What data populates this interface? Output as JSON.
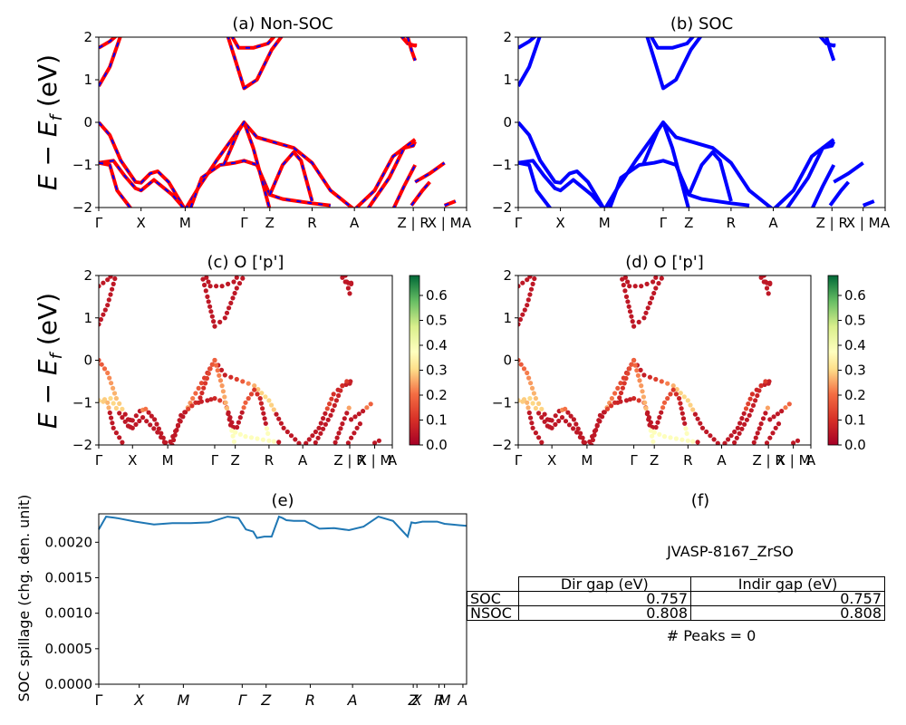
{
  "figure": {
    "ylabel_energy": "E − E_f (eV)",
    "ylabel_energy_main": "E − E",
    "ylabel_energy_sub": "f",
    "ylabel_energy_tail": " (eV)",
    "ylabel_spillage": "SOC spillage (chg. den. unit)"
  },
  "colors": {
    "red": "#ff0000",
    "blue": "#0000ff",
    "spillage_line": "#1f77b4",
    "cmap_low": "#a50026",
    "cmap_mid": "#ffffbf",
    "cmap_high": "#006837"
  },
  "chart_data": [
    {
      "id": "a",
      "type": "line",
      "title": "(a) Non-SOC",
      "ylim": [
        -2,
        2
      ],
      "yticks": [
        "2",
        "1",
        "0",
        "−1",
        "−2"
      ],
      "kpath_labels": [
        "Γ",
        "X",
        "M",
        "Γ",
        "Z",
        "R",
        "A",
        "Z | R",
        "X | M",
        "A"
      ],
      "series": [
        {
          "name": "Non-SOC",
          "color": "#ff0000",
          "overlay": "#0000ff"
        }
      ]
    },
    {
      "id": "b",
      "type": "line",
      "title": "(b) SOC",
      "ylim": [
        -2,
        2
      ],
      "yticks": [
        "2",
        "1",
        "0",
        "−1",
        "−2"
      ],
      "kpath_labels": [
        "Γ",
        "X",
        "M",
        "Γ",
        "Z",
        "R",
        "A",
        "Z | R",
        "X | M",
        "A"
      ],
      "series": [
        {
          "name": "SOC",
          "color": "#0000ff"
        }
      ]
    },
    {
      "id": "c",
      "type": "scatter",
      "title": "(c)  O ['p']",
      "ylim": [
        -2,
        2
      ],
      "yticks": [
        "2",
        "1",
        "0",
        "−1",
        "−2"
      ],
      "kpath_labels": [
        "Γ",
        "X",
        "M",
        "Γ",
        "Z",
        "R",
        "A",
        "Z | R",
        "X | M",
        "A"
      ],
      "colorbar": {
        "min": 0.0,
        "max": 0.68,
        "ticks": [
          "0.0",
          "0.1",
          "0.2",
          "0.3",
          "0.4",
          "0.5",
          "0.6"
        ]
      }
    },
    {
      "id": "d",
      "type": "scatter",
      "title": "(d) O ['p']",
      "ylim": [
        -2,
        2
      ],
      "yticks": [
        "2",
        "1",
        "0",
        "−1",
        "−2"
      ],
      "kpath_labels": [
        "Γ",
        "X",
        "M",
        "Γ",
        "Z",
        "R",
        "A",
        "Z | R",
        "X | M",
        "A"
      ],
      "colorbar": {
        "min": 0.0,
        "max": 0.68,
        "ticks": [
          "0.0",
          "0.1",
          "0.2",
          "0.3",
          "0.4",
          "0.5",
          "0.6"
        ]
      }
    },
    {
      "id": "e",
      "type": "line",
      "title": "(e)",
      "ylabel": "SOC spillage (chg. den. unit)",
      "ylim": [
        0,
        0.0024
      ],
      "yticks": [
        "0.0020",
        "0.0015",
        "0.0010",
        "0.0005",
        "0.0000"
      ],
      "kpath_labels": [
        "Γ",
        "X",
        "M",
        "Γ",
        "Z",
        "R",
        "A",
        "Z",
        "X",
        "R",
        "M",
        "A"
      ],
      "x": [
        0,
        0.02,
        0.05,
        0.1,
        0.15,
        0.2,
        0.25,
        0.3,
        0.35,
        0.38,
        0.4,
        0.42,
        0.43,
        0.45,
        0.47,
        0.49,
        0.5,
        0.51,
        0.53,
        0.56,
        0.6,
        0.64,
        0.68,
        0.72,
        0.76,
        0.8,
        0.84,
        0.85,
        0.86,
        0.88,
        0.9,
        0.92,
        0.94,
        0.96,
        1.0
      ],
      "y": [
        0.00218,
        0.00236,
        0.00234,
        0.00229,
        0.00225,
        0.00227,
        0.00227,
        0.00228,
        0.00236,
        0.00234,
        0.00218,
        0.00215,
        0.00206,
        0.00208,
        0.00208,
        0.00236,
        0.00234,
        0.00231,
        0.0023,
        0.0023,
        0.00219,
        0.0022,
        0.00217,
        0.00222,
        0.00236,
        0.0023,
        0.00208,
        0.00228,
        0.00227,
        0.00229,
        0.00229,
        0.00229,
        0.00226,
        0.00225,
        0.00223
      ],
      "color": "#1f77b4"
    }
  ],
  "table_panel": {
    "title": "(f)",
    "material": "JVASP-8167_ZrSO",
    "headers": [
      "Dir gap (eV)",
      "Indir gap (eV)"
    ],
    "rows": [
      {
        "label": "SOC",
        "dir": "0.757",
        "indir": "0.757"
      },
      {
        "label": "NSOC",
        "dir": "0.808",
        "indir": "0.808"
      }
    ],
    "peaks": "# Peaks = 0"
  }
}
